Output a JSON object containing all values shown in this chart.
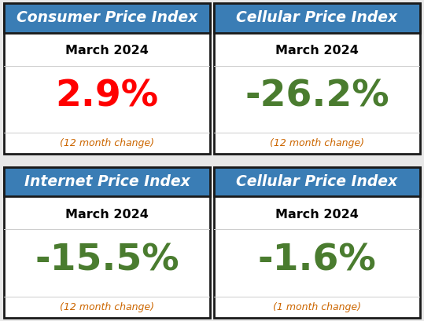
{
  "panels": [
    {
      "title": "Consumer Price Index",
      "date": "March 2024",
      "value": "2.9%",
      "value_color": "#ff0000",
      "footnote": "(12 month change)"
    },
    {
      "title": "Cellular Price Index",
      "date": "March 2024",
      "value": "-26.2%",
      "value_color": "#4a7c2f",
      "footnote": "(12 month change)"
    },
    {
      "title": "Internet Price Index",
      "date": "March 2024",
      "value": "-15.5%",
      "value_color": "#4a7c2f",
      "footnote": "(12 month change)"
    },
    {
      "title": "Cellular Price Index",
      "date": "March 2024",
      "value": "-1.6%",
      "value_color": "#4a7c2f",
      "footnote": "(1 month change)"
    }
  ],
  "header_bg": "#3a7db5",
  "header_text_color": "#ffffff",
  "cell_bg": "#ffffff",
  "outer_border_color": "#1a1a1a",
  "inner_line_color": "#cccccc",
  "date_color": "#000000",
  "footnote_color": "#cc6600",
  "title_fontsize": 13.5,
  "date_fontsize": 11.5,
  "value_fontsize": 34,
  "footnote_fontsize": 9,
  "fig_bg": "#e8e8e8",
  "gap_color": "#e8e8e8"
}
